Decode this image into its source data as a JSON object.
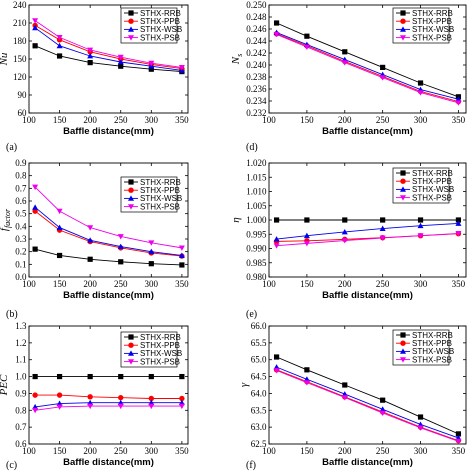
{
  "series_style": [
    {
      "name": "STHX-RRB",
      "color": "#000000",
      "marker": "square"
    },
    {
      "name": "STHX-PPB",
      "color": "#ff0000",
      "marker": "circle"
    },
    {
      "name": "STHX-WSB",
      "color": "#0000ee",
      "marker": "triangle"
    },
    {
      "name": "STHX-PSB",
      "color": "#ee00ee",
      "marker": "invtriangle"
    }
  ],
  "chart_data": [
    {
      "type": "line",
      "panel_label": "(a)",
      "ylabel": "Nu",
      "xlabel": "Baffle distance(mm)",
      "x": [
        110,
        150,
        200,
        250,
        300,
        350
      ],
      "xlim": [
        100,
        360
      ],
      "xticks": [
        100,
        150,
        200,
        250,
        300,
        350
      ],
      "ylim": [
        60,
        240
      ],
      "yticks": [
        60,
        90,
        120,
        150,
        180,
        210,
        240
      ],
      "ytick_labels": [
        "60",
        "90",
        "120",
        "150",
        "180",
        "210",
        "240"
      ],
      "legend": "top-right",
      "series": [
        {
          "name": "STHX-RRB",
          "values": [
            172,
            155,
            144,
            138,
            133,
            129
          ]
        },
        {
          "name": "STHX-PPB",
          "values": [
            206,
            182,
            162,
            150,
            141,
            134
          ]
        },
        {
          "name": "STHX-WSB",
          "values": [
            202,
            172,
            155,
            145,
            138,
            131
          ]
        },
        {
          "name": "STHX-PSB",
          "values": [
            214,
            186,
            165,
            153,
            143,
            136
          ]
        }
      ]
    },
    {
      "type": "line",
      "panel_label": "(b)",
      "ylabel": "f",
      "ylabel_sub": "factor",
      "xlabel": "Baffle distance(mm)",
      "x": [
        110,
        150,
        200,
        250,
        300,
        350
      ],
      "xlim": [
        100,
        360
      ],
      "xticks": [
        100,
        150,
        200,
        250,
        300,
        350
      ],
      "ylim": [
        0.0,
        0.9
      ],
      "yticks": [
        0.0,
        0.1,
        0.2,
        0.3,
        0.4,
        0.5,
        0.6,
        0.7,
        0.8,
        0.9
      ],
      "ytick_labels": [
        "0.0",
        "0.1",
        "0.2",
        "0.3",
        "0.4",
        "0.5",
        "0.6",
        "0.7",
        "0.8",
        "0.9"
      ],
      "legend": "top-right",
      "series": [
        {
          "name": "STHX-RRB",
          "values": [
            0.22,
            0.17,
            0.14,
            0.12,
            0.105,
            0.095
          ]
        },
        {
          "name": "STHX-PPB",
          "values": [
            0.52,
            0.37,
            0.28,
            0.23,
            0.19,
            0.165
          ]
        },
        {
          "name": "STHX-WSB",
          "values": [
            0.55,
            0.39,
            0.29,
            0.24,
            0.2,
            0.17
          ]
        },
        {
          "name": "STHX-PSB",
          "values": [
            0.71,
            0.52,
            0.39,
            0.32,
            0.27,
            0.23
          ]
        }
      ]
    },
    {
      "type": "line",
      "panel_label": "(c)",
      "ylabel": "PEC",
      "xlabel": "Baffle distance(mm)",
      "x": [
        110,
        150,
        200,
        250,
        300,
        350
      ],
      "xlim": [
        100,
        360
      ],
      "xticks": [
        100,
        150,
        200,
        250,
        300,
        350
      ],
      "ylim": [
        0.6,
        1.3
      ],
      "yticks": [
        0.6,
        0.7,
        0.8,
        0.9,
        1.0,
        1.1,
        1.2,
        1.3
      ],
      "ytick_labels": [
        "0.6",
        "0.7",
        "0.8",
        "0.9",
        "1.0",
        "1.1",
        "1.2",
        "1.3"
      ],
      "legend": "top-right",
      "series": [
        {
          "name": "STHX-RRB",
          "values": [
            1.0,
            1.0,
            1.0,
            1.0,
            1.0,
            1.0
          ]
        },
        {
          "name": "STHX-PPB",
          "values": [
            0.89,
            0.89,
            0.88,
            0.875,
            0.87,
            0.87
          ]
        },
        {
          "name": "STHX-WSB",
          "values": [
            0.82,
            0.84,
            0.845,
            0.845,
            0.845,
            0.845
          ]
        },
        {
          "name": "STHX-PSB",
          "values": [
            0.8,
            0.82,
            0.825,
            0.825,
            0.825,
            0.825
          ]
        }
      ]
    },
    {
      "type": "line",
      "panel_label": "(d)",
      "ylabel": "N",
      "ylabel_sub": "s",
      "xlabel": "Baffle distance(mm)",
      "x": [
        110,
        150,
        200,
        250,
        300,
        350
      ],
      "xlim": [
        100,
        360
      ],
      "xticks": [
        100,
        150,
        200,
        250,
        300,
        350
      ],
      "ylim": [
        0.232,
        0.25
      ],
      "yticks": [
        0.232,
        0.234,
        0.236,
        0.238,
        0.24,
        0.242,
        0.244,
        0.246,
        0.248,
        0.25
      ],
      "ytick_labels": [
        "0.232",
        "0.234",
        "0.236",
        "0.238",
        "0.240",
        "0.242",
        "0.244",
        "0.246",
        "0.248",
        "0.250"
      ],
      "legend": "top-right",
      "series": [
        {
          "name": "STHX-RRB",
          "values": [
            0.247,
            0.2448,
            0.2422,
            0.2396,
            0.237,
            0.2347
          ]
        },
        {
          "name": "STHX-PPB",
          "values": [
            0.2452,
            0.2432,
            0.2406,
            0.2381,
            0.2356,
            0.2339
          ]
        },
        {
          "name": "STHX-WSB",
          "values": [
            0.2454,
            0.2434,
            0.2409,
            0.2384,
            0.2359,
            0.2343
          ]
        },
        {
          "name": "STHX-PSB",
          "values": [
            0.2451,
            0.243,
            0.2404,
            0.2379,
            0.2354,
            0.2337
          ]
        }
      ]
    },
    {
      "type": "line",
      "panel_label": "(e)",
      "ylabel": "η",
      "xlabel": "Baffle distance(mm)",
      "x": [
        110,
        150,
        200,
        250,
        300,
        350
      ],
      "xlim": [
        100,
        360
      ],
      "xticks": [
        100,
        150,
        200,
        250,
        300,
        350
      ],
      "ylim": [
        0.98,
        1.02
      ],
      "yticks": [
        0.98,
        0.985,
        0.99,
        0.995,
        1.0,
        1.005,
        1.01,
        1.015,
        1.02
      ],
      "ytick_labels": [
        "0.980",
        "0.985",
        "0.990",
        "0.995",
        "1.000",
        "1.005",
        "1.010",
        "1.015",
        "1.020"
      ],
      "legend": "top-right",
      "series": [
        {
          "name": "STHX-RRB",
          "values": [
            1.0,
            1.0,
            1.0,
            1.0,
            1.0,
            1.0
          ]
        },
        {
          "name": "STHX-PPB",
          "values": [
            0.9925,
            0.9927,
            0.9932,
            0.9938,
            0.9945,
            0.9952
          ]
        },
        {
          "name": "STHX-WSB",
          "values": [
            0.9933,
            0.9945,
            0.9958,
            0.997,
            0.998,
            0.9988
          ]
        },
        {
          "name": "STHX-PSB",
          "values": [
            0.991,
            0.9918,
            0.9928,
            0.9937,
            0.9945,
            0.9953
          ]
        }
      ]
    },
    {
      "type": "line",
      "panel_label": "(f)",
      "ylabel": "γ",
      "xlabel": "Baffle distance(mm)",
      "x": [
        110,
        150,
        200,
        250,
        300,
        350
      ],
      "xlim": [
        100,
        360
      ],
      "xticks": [
        100,
        150,
        200,
        250,
        300,
        350
      ],
      "ylim": [
        62.5,
        66.0
      ],
      "yticks": [
        62.5,
        63.0,
        63.5,
        64.0,
        64.5,
        65.0,
        65.5,
        66.0
      ],
      "ytick_labels": [
        "62.5",
        "63.0",
        "63.5",
        "64.0",
        "64.5",
        "65.0",
        "65.5",
        "66.0"
      ],
      "legend": "top-right",
      "series": [
        {
          "name": "STHX-RRB",
          "values": [
            65.08,
            64.7,
            64.25,
            63.8,
            63.3,
            62.8
          ]
        },
        {
          "name": "STHX-PPB",
          "values": [
            64.7,
            64.35,
            63.9,
            63.45,
            63.0,
            62.6
          ]
        },
        {
          "name": "STHX-WSB",
          "values": [
            64.78,
            64.42,
            63.98,
            63.53,
            63.08,
            62.68
          ]
        },
        {
          "name": "STHX-PSB",
          "values": [
            64.68,
            64.32,
            63.88,
            63.42,
            62.98,
            62.58
          ]
        }
      ]
    }
  ]
}
